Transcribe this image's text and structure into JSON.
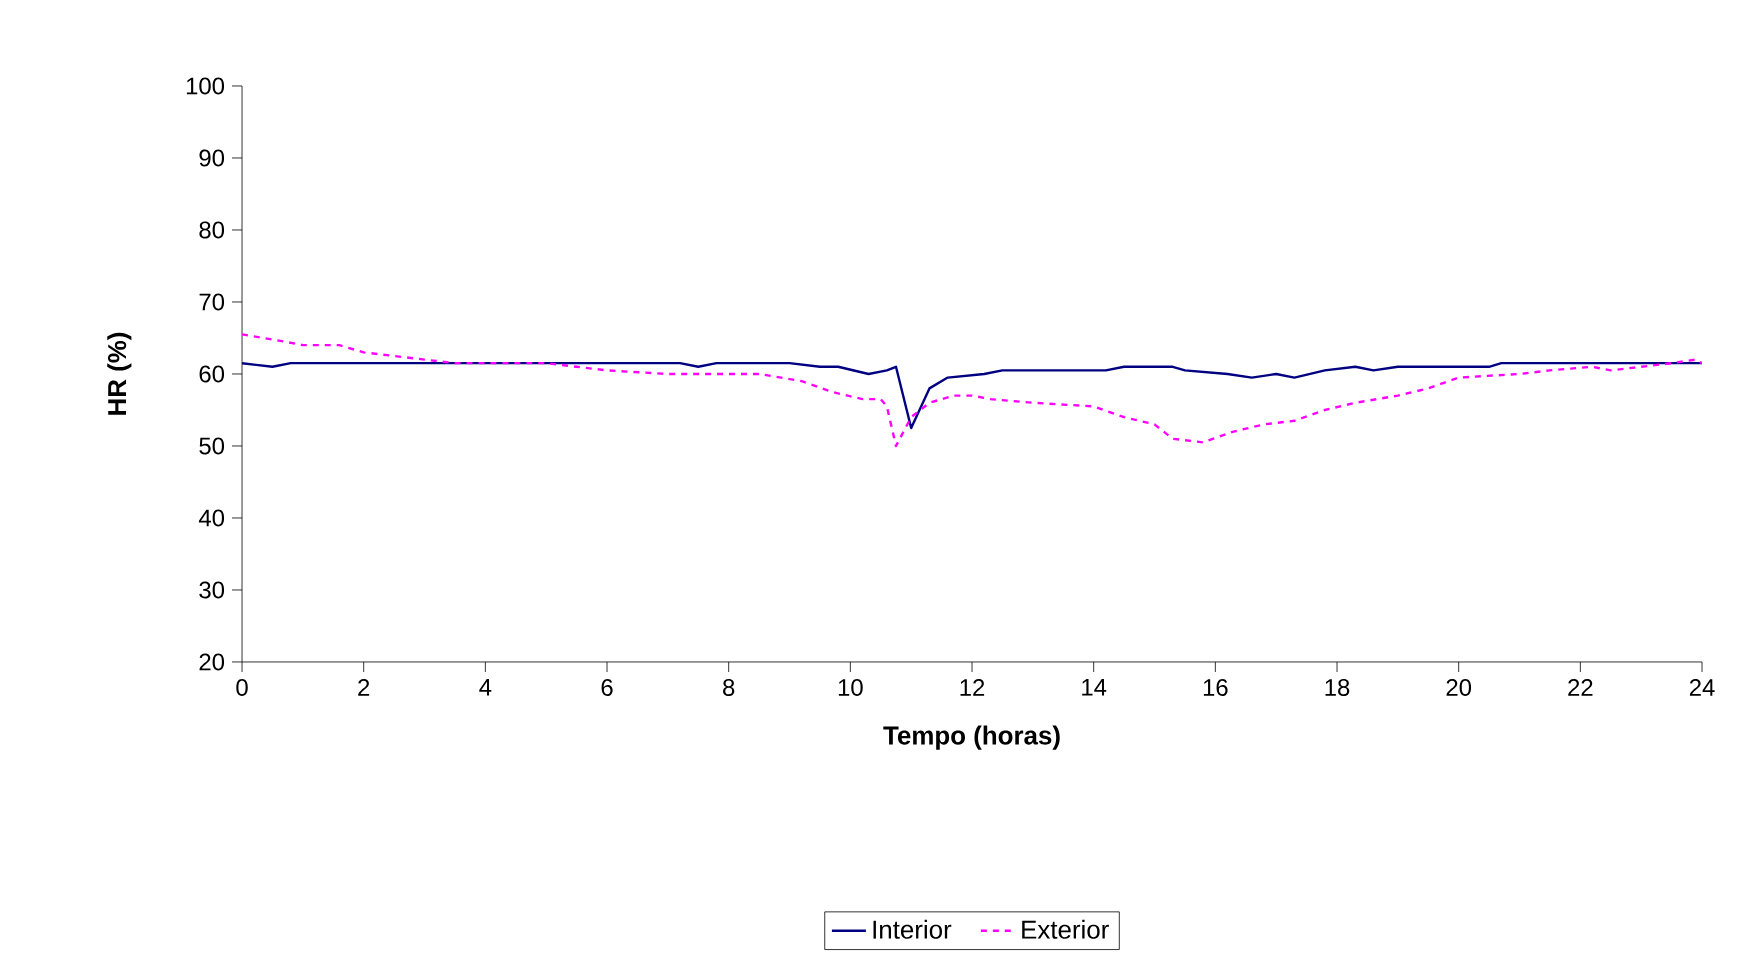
{
  "chart_data": {
    "type": "line",
    "xlabel": "Tempo (horas)",
    "ylabel": "HR (%)",
    "xlim": [
      0,
      24
    ],
    "xticks": [
      0,
      2,
      4,
      6,
      8,
      10,
      12,
      14,
      16,
      18,
      20,
      22,
      24
    ],
    "ylim": [
      20,
      100
    ],
    "yticks": [
      20,
      30,
      40,
      50,
      60,
      70,
      80,
      90,
      100
    ],
    "grid": false,
    "legend": "bottom",
    "series": [
      {
        "name": "Interior",
        "color": "#000080",
        "line_style": "solid",
        "x": [
          0,
          0.5,
          0.8,
          2,
          4,
          6,
          7.2,
          7.5,
          7.8,
          9,
          9.5,
          9.8,
          10.3,
          10.6,
          10.75,
          11,
          11.3,
          11.6,
          12.2,
          12.5,
          14.2,
          14.5,
          15.3,
          15.5,
          16.2,
          16.6,
          17,
          17.3,
          17.8,
          18.3,
          18.6,
          19,
          20.5,
          20.7,
          22,
          24
        ],
        "values": [
          61.5,
          61,
          61.5,
          61.5,
          61.5,
          61.5,
          61.5,
          61,
          61.5,
          61.5,
          61,
          61,
          60,
          60.5,
          61,
          52.5,
          58,
          59.5,
          60,
          60.5,
          60.5,
          61,
          61,
          60.5,
          60,
          59.5,
          60,
          59.5,
          60.5,
          61,
          60.5,
          61,
          61,
          61.5,
          61.5,
          61.5
        ]
      },
      {
        "name": "Exterior",
        "color": "#ff00ff",
        "line_style": "dashed",
        "x": [
          0,
          0.7,
          1,
          1.6,
          2,
          2.5,
          3,
          3.5,
          5,
          5.5,
          6,
          7,
          8.5,
          9.2,
          9.7,
          10.2,
          10.5,
          10.6,
          10.75,
          11,
          11.3,
          11.7,
          12,
          12.3,
          13,
          14,
          14.5,
          15,
          15.3,
          15.8,
          16.3,
          16.8,
          17.3,
          17.8,
          18.3,
          19,
          19.5,
          20,
          21,
          21.5,
          22.2,
          22.5,
          23,
          23.5,
          23.9,
          24
        ],
        "values": [
          65.5,
          64.5,
          64,
          64,
          63,
          62.5,
          62,
          61.5,
          61.5,
          61,
          60.5,
          60,
          60,
          59,
          57.5,
          56.5,
          56.5,
          55.5,
          50,
          54,
          56,
          57,
          57,
          56.5,
          56,
          55.5,
          54,
          53,
          51,
          50.5,
          52,
          53,
          53.5,
          55,
          56,
          57,
          58,
          59.5,
          60,
          60.5,
          61,
          60.5,
          61,
          61.5,
          62,
          61.5
        ]
      }
    ]
  }
}
